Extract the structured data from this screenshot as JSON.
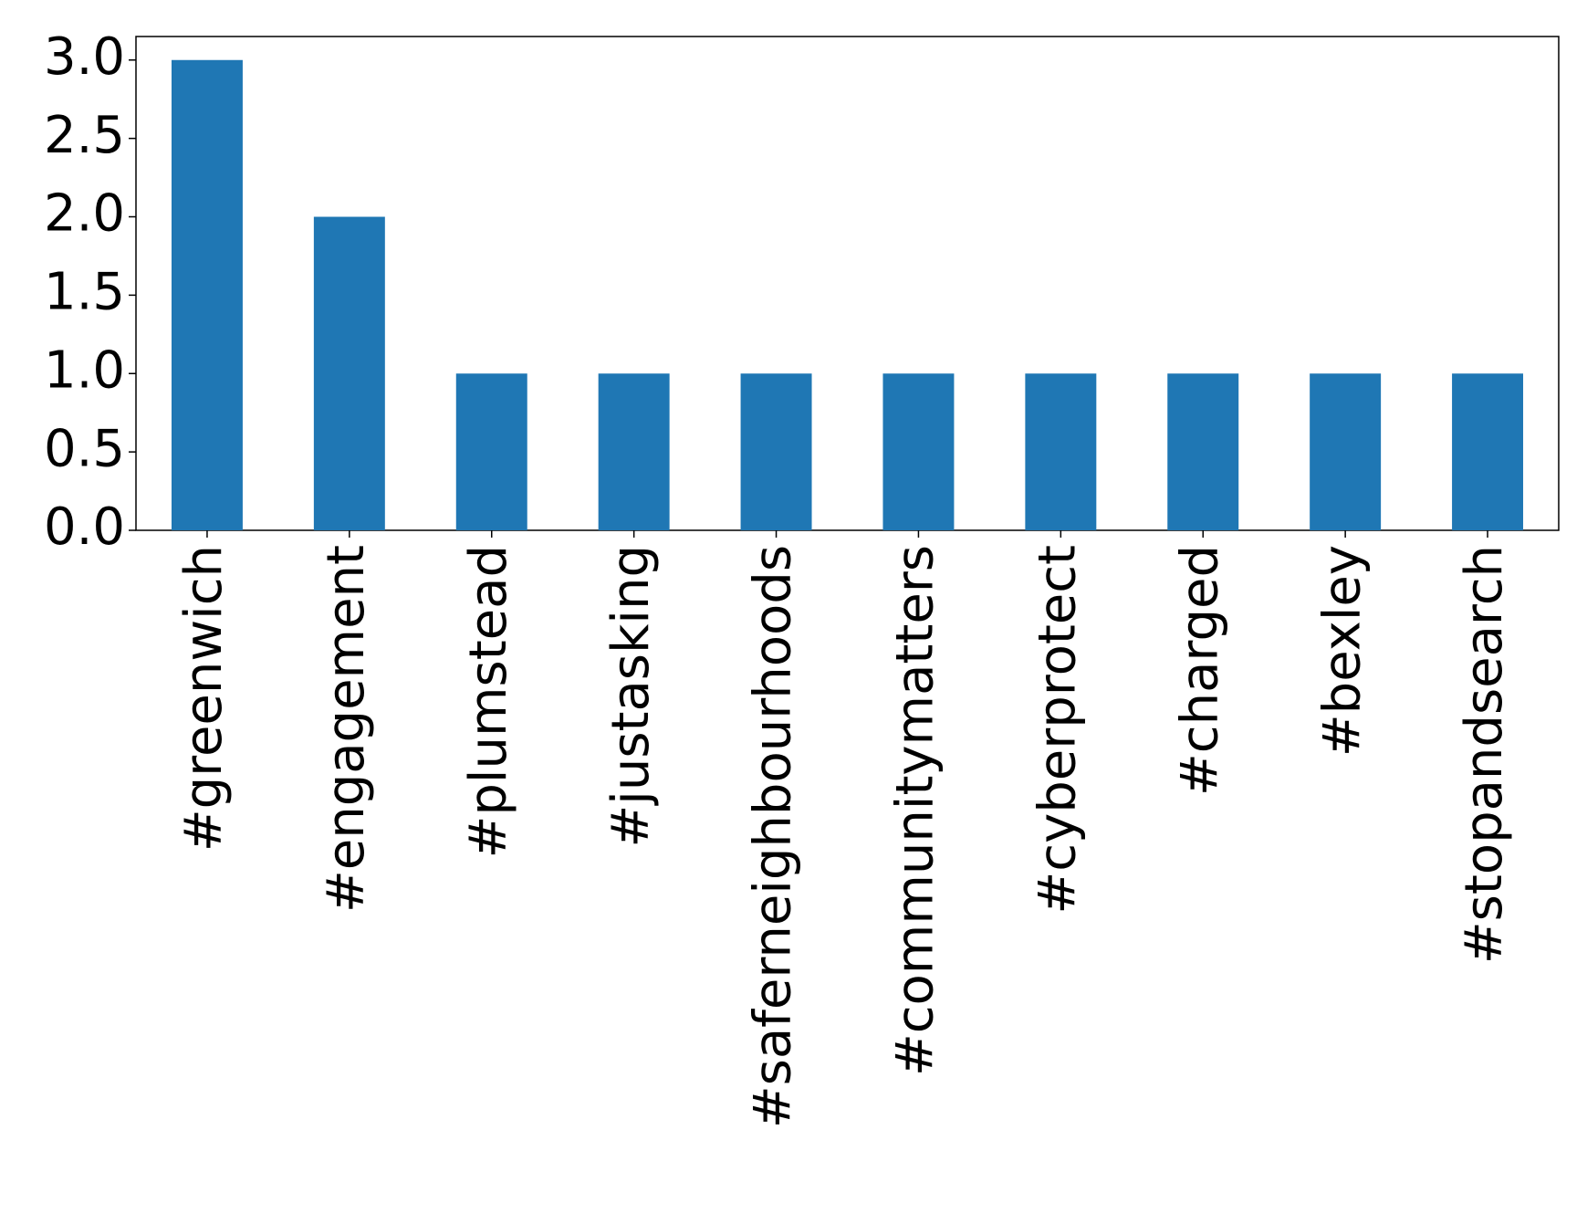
{
  "chart_data": {
    "type": "bar",
    "categories": [
      "#greenwich",
      "#engagement",
      "#plumstead",
      "#justasking",
      "#saferneighbourhoods",
      "#communitymatters",
      "#cyberprotect",
      "#charged",
      "#bexley",
      "#stopandsearch"
    ],
    "values": [
      3,
      2,
      1,
      1,
      1,
      1,
      1,
      1,
      1,
      1
    ],
    "color": "#1f77b4",
    "ylim": [
      0,
      3.15
    ],
    "yticks": [
      {
        "value": 0,
        "label": "0.0"
      },
      {
        "value": 0.5,
        "label": "0.5"
      },
      {
        "value": 1,
        "label": "1.0"
      },
      {
        "value": 1.5,
        "label": "1.5"
      },
      {
        "value": 2,
        "label": "2.0"
      },
      {
        "value": 2.5,
        "label": "2.5"
      },
      {
        "value": 3,
        "label": "3.0"
      }
    ],
    "grid": false
  }
}
